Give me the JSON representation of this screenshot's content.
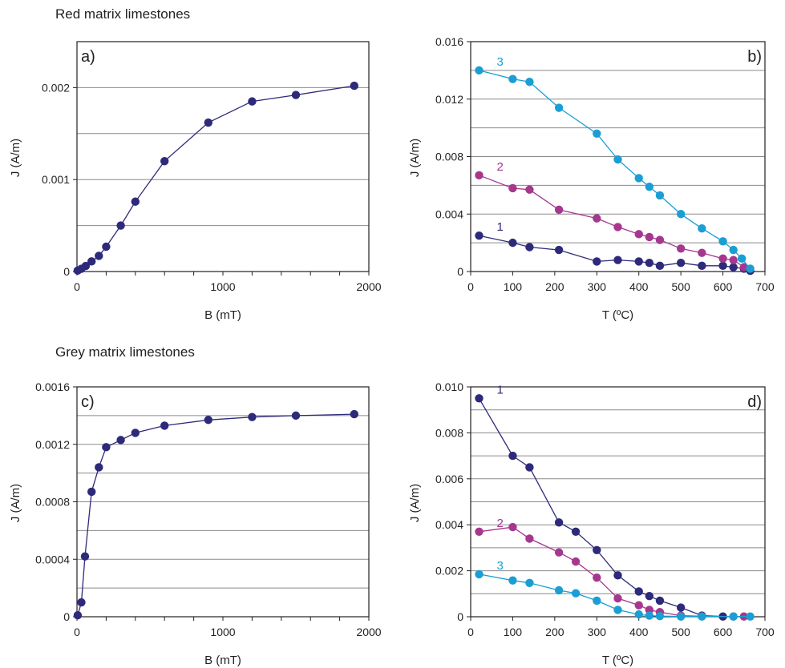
{
  "headings": {
    "red": "Red matrix limestones",
    "grey": "Grey matrix limestones"
  },
  "chart_data": [
    {
      "type": "line",
      "panel_label": "a)",
      "xlabel": "B (mT)",
      "ylabel": "J (A/m)",
      "xlim": [
        0,
        2000
      ],
      "ylim": [
        0,
        0.0025
      ],
      "xticks": [
        0,
        1000,
        2000
      ],
      "yticks": [
        0,
        0.001,
        0.002
      ],
      "ytick_labels": [
        "0",
        "0.001",
        "0.002"
      ],
      "minor_x": [
        0,
        200,
        400,
        600,
        800,
        1000,
        1200,
        1400,
        1600,
        1800,
        2000
      ],
      "grid_y": [
        0.0005,
        0.001,
        0.0015,
        0.002,
        0.0025
      ],
      "series": [
        {
          "name": "",
          "color": "#2e2a7a",
          "x": [
            5,
            30,
            60,
            100,
            150,
            200,
            300,
            400,
            600,
            900,
            1200,
            1500,
            1900
          ],
          "y": [
            1e-05,
            3e-05,
            6e-05,
            0.00011,
            0.00017,
            0.00027,
            0.0005,
            0.00076,
            0.0012,
            0.00162,
            0.00185,
            0.00192,
            0.00202
          ]
        }
      ]
    },
    {
      "type": "line",
      "panel_label": "b)",
      "xlabel": "T (ºC)",
      "ylabel": "J (A/m)",
      "xlim": [
        0,
        700
      ],
      "ylim": [
        0,
        0.016
      ],
      "xticks": [
        0,
        100,
        200,
        300,
        400,
        500,
        600,
        700
      ],
      "yticks": [
        0,
        0.004,
        0.008,
        0.012,
        0.016
      ],
      "ytick_labels": [
        "0",
        "0.004",
        "0.008",
        "0.012",
        "0.016"
      ],
      "minor_x": [
        0,
        100,
        200,
        300,
        400,
        500,
        600,
        700
      ],
      "grid_y": [
        0.002,
        0.004,
        0.006,
        0.008,
        0.01,
        0.012,
        0.014,
        0.016
      ],
      "series": [
        {
          "name": "1",
          "color": "#2e2a7a",
          "x": [
            20,
            100,
            140,
            210,
            300,
            350,
            400,
            425,
            450,
            500,
            550,
            600,
            625,
            650,
            665
          ],
          "y": [
            0.0025,
            0.002,
            0.0017,
            0.0015,
            0.0007,
            0.0008,
            0.0007,
            0.0006,
            0.0004,
            0.0006,
            0.0004,
            0.0004,
            0.0003,
            0.0002,
            5e-05
          ]
        },
        {
          "name": "2",
          "color": "#a6378e",
          "x": [
            20,
            100,
            140,
            210,
            300,
            350,
            400,
            425,
            450,
            500,
            550,
            600,
            625,
            650
          ],
          "y": [
            0.0067,
            0.0058,
            0.0057,
            0.0043,
            0.0037,
            0.0031,
            0.0026,
            0.0024,
            0.0022,
            0.0016,
            0.0013,
            0.0009,
            0.0008,
            0.0003
          ]
        },
        {
          "name": "3",
          "color": "#1a9ed4",
          "x": [
            20,
            100,
            140,
            210,
            300,
            350,
            400,
            425,
            450,
            500,
            550,
            600,
            625,
            645,
            665
          ],
          "y": [
            0.014,
            0.0134,
            0.0132,
            0.0114,
            0.0096,
            0.0078,
            0.0065,
            0.0059,
            0.0053,
            0.004,
            0.003,
            0.0021,
            0.0015,
            0.0009,
            0.0002
          ]
        }
      ]
    },
    {
      "type": "line",
      "panel_label": "c)",
      "xlabel": "B (mT)",
      "ylabel": "J (A/m)",
      "xlim": [
        0,
        2000
      ],
      "ylim": [
        0,
        0.0016
      ],
      "xticks": [
        0,
        1000,
        2000
      ],
      "yticks": [
        0,
        0.0004,
        0.0008,
        0.0012,
        0.0016
      ],
      "ytick_labels": [
        "0",
        "0.0004",
        "0.0008",
        "0.0012",
        "0.0016"
      ],
      "minor_x": [
        0,
        200,
        400,
        600,
        800,
        1000,
        1200,
        1400,
        1600,
        1800,
        2000
      ],
      "grid_y": [
        0.0002,
        0.0004,
        0.0006,
        0.0008,
        0.001,
        0.0012,
        0.0014,
        0.0016
      ],
      "series": [
        {
          "name": "",
          "color": "#2e2a7a",
          "x": [
            5,
            30,
            55,
            100,
            150,
            200,
            300,
            400,
            600,
            900,
            1200,
            1500,
            1900
          ],
          "y": [
            1e-05,
            0.0001,
            0.00042,
            0.00087,
            0.00104,
            0.00118,
            0.00123,
            0.00128,
            0.00133,
            0.00137,
            0.00139,
            0.0014,
            0.00141
          ]
        }
      ]
    },
    {
      "type": "line",
      "panel_label": "d)",
      "xlabel": "T (ºC)",
      "ylabel": "J (A/m)",
      "xlim": [
        0,
        700
      ],
      "ylim": [
        0,
        0.01
      ],
      "xticks": [
        0,
        100,
        200,
        300,
        400,
        500,
        600,
        700
      ],
      "yticks": [
        0,
        0.002,
        0.004,
        0.006,
        0.008,
        0.01
      ],
      "ytick_labels": [
        "0",
        "0.002",
        "0.004",
        "0.006",
        "0.008",
        "0.010"
      ],
      "minor_x": [
        0,
        100,
        200,
        300,
        400,
        500,
        600,
        700
      ],
      "grid_y": [
        0.001,
        0.002,
        0.003,
        0.004,
        0.005,
        0.006,
        0.007,
        0.008,
        0.009,
        0.01
      ],
      "series": [
        {
          "name": "1",
          "color": "#2e2a7a",
          "x": [
            20,
            100,
            140,
            210,
            250,
            300,
            350,
            400,
            425,
            450,
            500,
            550,
            600
          ],
          "y": [
            0.0095,
            0.007,
            0.0065,
            0.0041,
            0.0037,
            0.0029,
            0.0018,
            0.0011,
            0.0009,
            0.0007,
            0.0004,
            5e-05,
            1e-05
          ]
        },
        {
          "name": "2",
          "color": "#a6378e",
          "x": [
            20,
            100,
            140,
            210,
            250,
            300,
            350,
            400,
            425,
            450,
            500,
            550,
            625,
            650
          ],
          "y": [
            0.0037,
            0.0039,
            0.0034,
            0.0028,
            0.0024,
            0.0017,
            0.0008,
            0.0005,
            0.0003,
            0.0002,
            5e-05,
            2e-05,
            1e-05,
            1e-05
          ]
        },
        {
          "name": "3",
          "color": "#1a9ed4",
          "x": [
            20,
            100,
            140,
            210,
            250,
            300,
            350,
            400,
            425,
            450,
            500,
            550,
            625,
            665
          ],
          "y": [
            0.00185,
            0.00158,
            0.00147,
            0.00115,
            0.00102,
            0.0007,
            0.0003,
            0.0001,
            5e-05,
            3e-05,
            1e-05,
            1e-05,
            1e-05,
            1e-05
          ]
        }
      ]
    }
  ]
}
